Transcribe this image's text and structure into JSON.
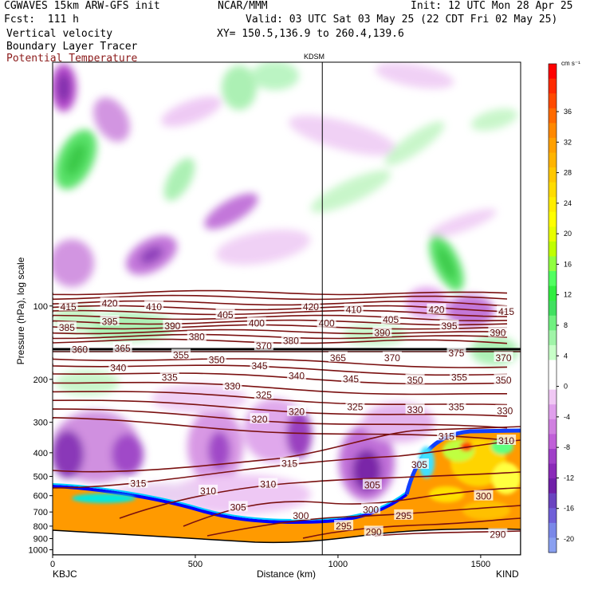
{
  "header": {
    "model": "CGWAVES 15km ARW-GFS init",
    "fcst": "Fcst:  111 h",
    "field1": "Vertical velocity",
    "field2": "Boundary Layer Tracer",
    "field3": "Potential Temperature",
    "org": "NCAR/MMM",
    "init": "Init: 12 UTC Mon 28 Apr 25",
    "valid": "Valid: 03 UTC Sat 03 May 25 (22 CDT Fri 02 May 25)",
    "xy": "XY= 150.5,136.9 to 260.4,139.6",
    "marker": "KDSM",
    "field3_color": "#8b1a1a"
  },
  "chart_data": {
    "type": "heatmap",
    "xlabel": "Distance (km)",
    "ylabel": "Pressure (hPa), log scale",
    "x_ticks": [
      0,
      500,
      1000,
      1500
    ],
    "x_range": [
      0,
      1640
    ],
    "y_ticks": [
      100,
      200,
      300,
      400,
      500,
      600,
      700,
      800,
      900,
      1000
    ],
    "y_range": [
      1050,
      10
    ],
    "left_station": "KBJC",
    "right_station": "KIND",
    "marker_km": 945,
    "colorbar": {
      "unit": "cm s⁻¹",
      "tick_labels": [
        "36",
        "32",
        "28",
        "24",
        "20",
        "16",
        "12",
        "8",
        "4",
        "0",
        "-4",
        "-8",
        "-12",
        "-16",
        "-20"
      ],
      "colors": [
        "#ff0000",
        "#ff2a00",
        "#ff4a00",
        "#ff6a00",
        "#ff8800",
        "#ffa000",
        "#ffb400",
        "#ffc800",
        "#ffdc00",
        "#ffee00",
        "#ffff00",
        "#e8ff00",
        "#c0ff00",
        "#90ff40",
        "#50ff60",
        "#30ee40",
        "#40e060",
        "#70f080",
        "#a0f4a8",
        "#c8ffc8",
        "#ffffff",
        "#ffffff",
        "#f0c8f4",
        "#e0a0ec",
        "#d080e0",
        "#c060d8",
        "#a040c8",
        "#8a2ab8",
        "#7020a8",
        "#6a44c0",
        "#7060d8",
        "#7a88e8",
        "#8aa0f0"
      ]
    },
    "theta_labels": [
      {
        "v": "415",
        "x": 55,
        "p": 100
      },
      {
        "v": "420",
        "x": 200,
        "p": 97
      },
      {
        "v": "410",
        "x": 355,
        "p": 100
      },
      {
        "v": "420",
        "x": 905,
        "p": 100
      },
      {
        "v": "410",
        "x": 1055,
        "p": 103
      },
      {
        "v": "420",
        "x": 1345,
        "p": 103
      },
      {
        "v": "415",
        "x": 1590,
        "p": 105
      },
      {
        "v": "395",
        "x": 200,
        "p": 115
      },
      {
        "v": "405",
        "x": 605,
        "p": 108
      },
      {
        "v": "400",
        "x": 715,
        "p": 117
      },
      {
        "v": "400",
        "x": 960,
        "p": 117
      },
      {
        "v": "405",
        "x": 1185,
        "p": 113
      },
      {
        "v": "395",
        "x": 1390,
        "p": 120
      },
      {
        "v": "390",
        "x": 1560,
        "p": 128
      },
      {
        "v": "385",
        "x": 50,
        "p": 122
      },
      {
        "v": "390",
        "x": 420,
        "p": 120
      },
      {
        "v": "380",
        "x": 505,
        "p": 133
      },
      {
        "v": "390",
        "x": 1155,
        "p": 128
      },
      {
        "v": "380",
        "x": 835,
        "p": 138
      },
      {
        "v": "370",
        "x": 740,
        "p": 145
      },
      {
        "v": "360",
        "x": 95,
        "p": 150
      },
      {
        "v": "365",
        "x": 245,
        "p": 148
      },
      {
        "v": "355",
        "x": 450,
        "p": 158
      },
      {
        "v": "350",
        "x": 575,
        "p": 165
      },
      {
        "v": "345",
        "x": 725,
        "p": 175
      },
      {
        "v": "365",
        "x": 1000,
        "p": 162
      },
      {
        "v": "370",
        "x": 1190,
        "p": 162
      },
      {
        "v": "375",
        "x": 1415,
        "p": 155
      },
      {
        "v": "370",
        "x": 1580,
        "p": 162
      },
      {
        "v": "340",
        "x": 230,
        "p": 178
      },
      {
        "v": "340",
        "x": 855,
        "p": 192
      },
      {
        "v": "335",
        "x": 410,
        "p": 195
      },
      {
        "v": "345",
        "x": 1045,
        "p": 198
      },
      {
        "v": "350",
        "x": 1270,
        "p": 200
      },
      {
        "v": "355",
        "x": 1425,
        "p": 195
      },
      {
        "v": "350",
        "x": 1580,
        "p": 200
      },
      {
        "v": "330",
        "x": 630,
        "p": 212
      },
      {
        "v": "325",
        "x": 740,
        "p": 230
      },
      {
        "v": "325",
        "x": 1060,
        "p": 258
      },
      {
        "v": "330",
        "x": 1270,
        "p": 265
      },
      {
        "v": "335",
        "x": 1415,
        "p": 258
      },
      {
        "v": "330",
        "x": 1585,
        "p": 268
      },
      {
        "v": "320",
        "x": 725,
        "p": 290
      },
      {
        "v": "320",
        "x": 855,
        "p": 270
      },
      {
        "v": "315",
        "x": 1380,
        "p": 340
      },
      {
        "v": "310",
        "x": 1590,
        "p": 355
      },
      {
        "v": "315",
        "x": 830,
        "p": 440
      },
      {
        "v": "305",
        "x": 1285,
        "p": 445
      },
      {
        "v": "315",
        "x": 300,
        "p": 532
      },
      {
        "v": "310",
        "x": 545,
        "p": 570
      },
      {
        "v": "310",
        "x": 755,
        "p": 535
      },
      {
        "v": "305",
        "x": 1120,
        "p": 540
      },
      {
        "v": "300",
        "x": 1510,
        "p": 600
      },
      {
        "v": "305",
        "x": 650,
        "p": 665
      },
      {
        "v": "300",
        "x": 870,
        "p": 720
      },
      {
        "v": "300",
        "x": 1115,
        "p": 680
      },
      {
        "v": "295",
        "x": 1230,
        "p": 720
      },
      {
        "v": "295",
        "x": 1020,
        "p": 795
      },
      {
        "v": "290",
        "x": 1125,
        "p": 840
      },
      {
        "v": "290",
        "x": 1560,
        "p": 860
      }
    ]
  }
}
